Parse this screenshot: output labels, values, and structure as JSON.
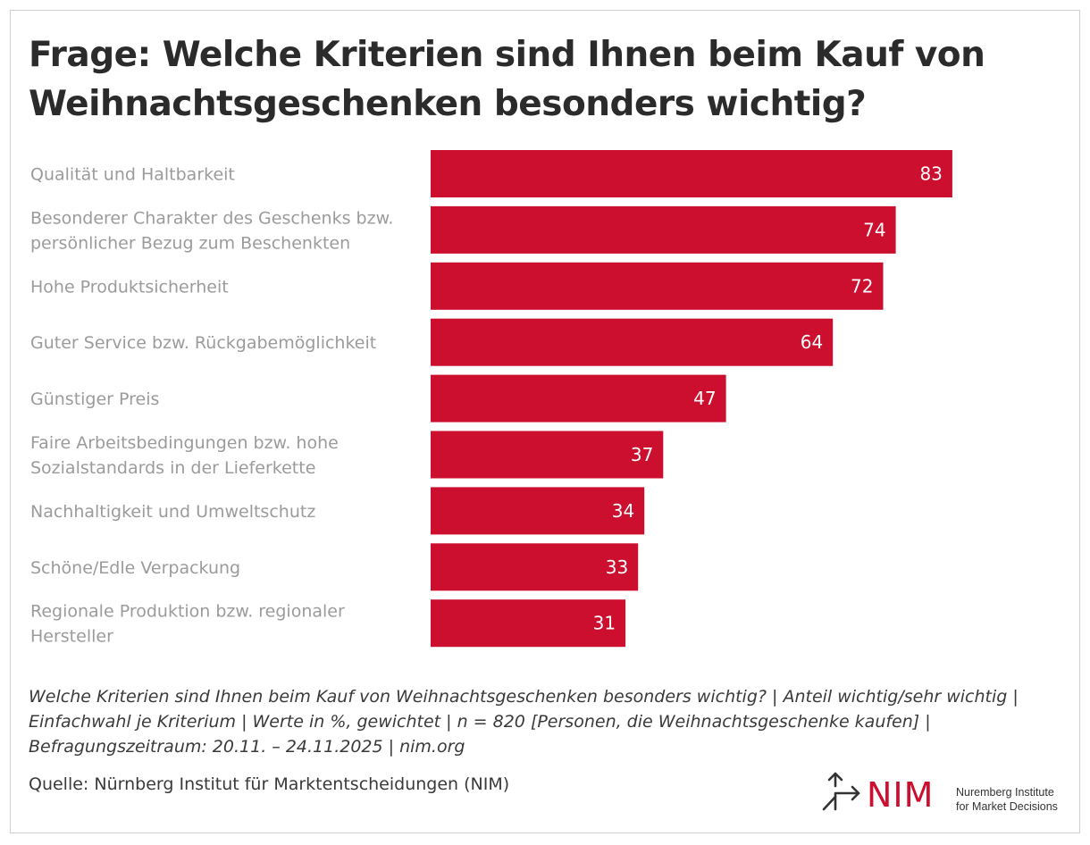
{
  "title": "Frage: Welche Kriterien sind Ihnen beim Kauf von Weihnachtsgeschenken besonders wichtig?",
  "note": "Welche Kriterien sind Ihnen beim Kauf von Weihnachtsgeschenken besonders wichtig? | Anteil wichtig/sehr wichtig | Einfachwahl je Kriterium | Werte in %, gewichtet | n = 820 [Personen, die Weihnachtsgeschenke kaufen] | Befragungszeitraum: 20.11. – 24.11.2025 | nim.org",
  "source": "Quelle: Nürnberg Institut für Marktentscheidungen (NIM)",
  "logo": {
    "wordmark": "NIM",
    "line1": "Nuremberg Institute",
    "line2": "for Market Decisions",
    "icon": "arrow-branch-icon"
  },
  "colors": {
    "bar": "#cc0e2f",
    "category_text": "#9b9b9b",
    "value_text": "#ffffff",
    "title_text": "#2b2b2b"
  },
  "chart_data": {
    "type": "bar",
    "orientation": "horizontal",
    "title": "Frage: Welche Kriterien sind Ihnen beim Kauf von Weihnachtsgeschenken besonders wichtig?",
    "categories": [
      [
        "Qualität und Haltbarkeit"
      ],
      [
        "Besonderer Charakter des Geschenks bzw.",
        "persönlicher Bezug zum Beschenkten"
      ],
      [
        "Hohe Produktsicherheit"
      ],
      [
        "Guter Service bzw. Rückgabemöglichkeit"
      ],
      [
        "Günstiger Preis"
      ],
      [
        "Faire Arbeitsbedingungen bzw. hohe",
        "Sozialstandards in der Lieferkette"
      ],
      [
        "Nachhaltigkeit und Umweltschutz"
      ],
      [
        "Schöne/Edle Verpackung"
      ],
      [
        "Regionale Produktion bzw. regionaler",
        "Hersteller"
      ]
    ],
    "values": [
      83,
      74,
      72,
      64,
      47,
      37,
      34,
      33,
      31
    ],
    "unit": "%",
    "xlim": [
      0,
      100
    ],
    "grid": false,
    "legend": "none",
    "data_labels": "inside-end"
  }
}
